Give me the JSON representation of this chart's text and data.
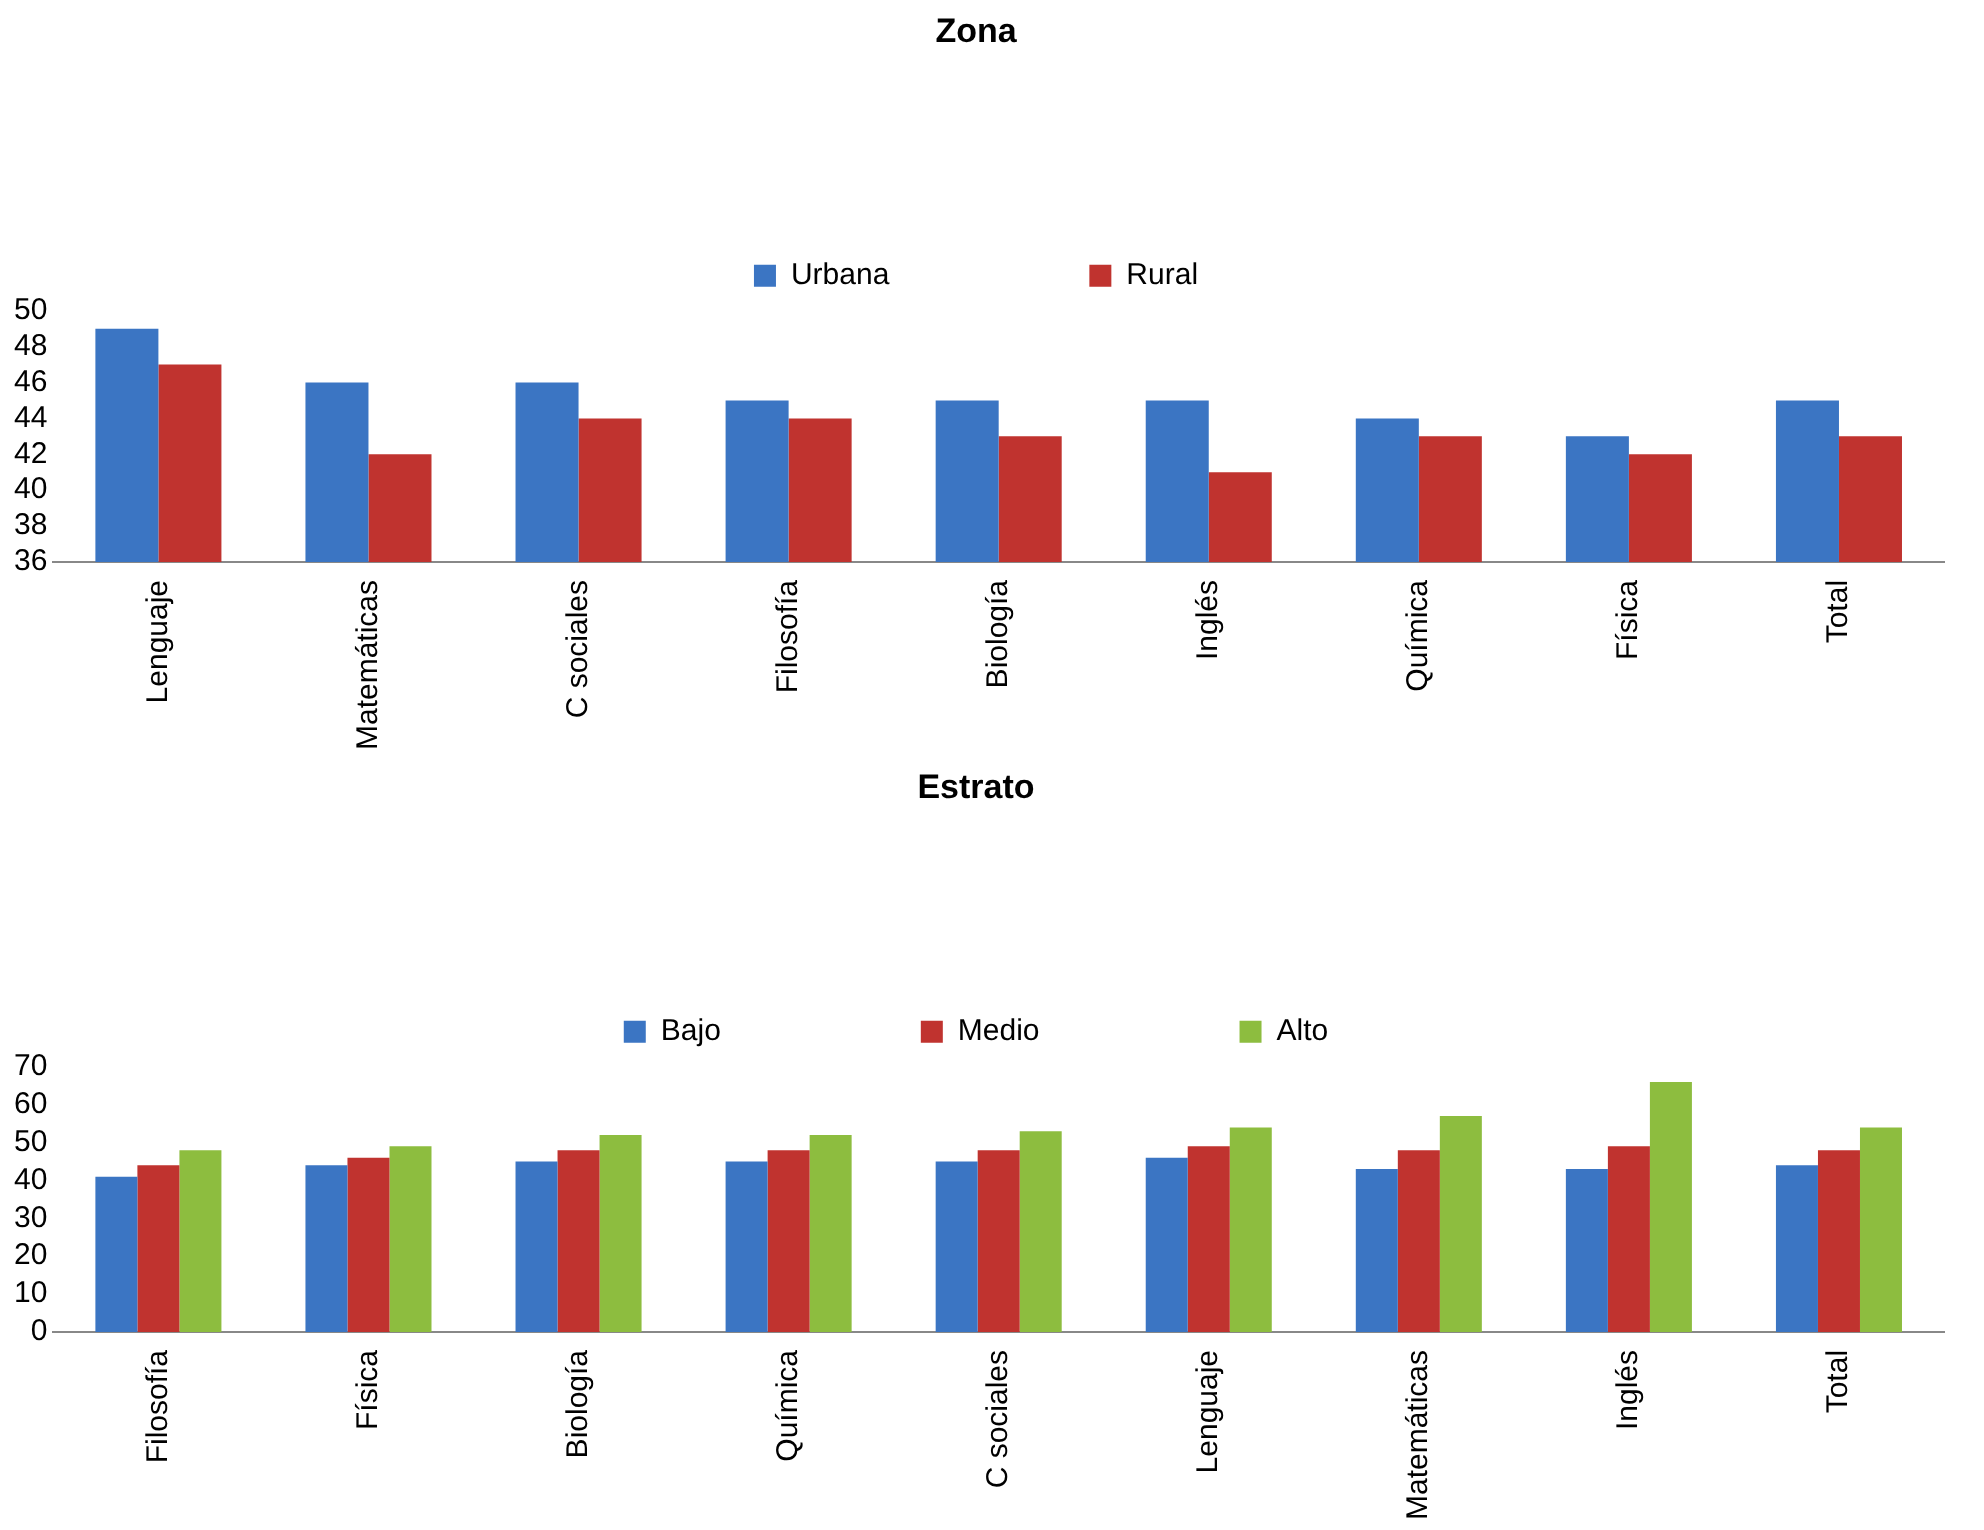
{
  "chart_data": [
    {
      "type": "bar",
      "title": "Zona",
      "categories": [
        "Lenguaje",
        "Matemáticas",
        "C sociales",
        "Filosofía",
        "Biología",
        "Inglés",
        "Química",
        "Física",
        "Total"
      ],
      "series": [
        {
          "name": "Urbana",
          "color": "#3b75c3",
          "values": [
            49,
            46,
            46,
            45,
            45,
            45,
            44,
            43,
            45
          ]
        },
        {
          "name": "Rural",
          "color": "#c0332f",
          "values": [
            47,
            42,
            44,
            44,
            43,
            41,
            43,
            42,
            43
          ]
        }
      ],
      "ylim": [
        36,
        50
      ],
      "yticks": [
        36,
        38,
        40,
        42,
        44,
        46,
        48,
        50
      ],
      "grid": false,
      "legend": "top"
    },
    {
      "type": "bar",
      "title": "Estrato",
      "categories": [
        "Filosofía",
        "Física",
        "Biología",
        "Química",
        "C sociales",
        "Lenguaje",
        "Matemáticas",
        "Inglés",
        "Total"
      ],
      "series": [
        {
          "name": "Bajo",
          "color": "#3b75c3",
          "values": [
            41,
            44,
            45,
            45,
            45,
            46,
            43,
            43,
            44
          ]
        },
        {
          "name": "Medio",
          "color": "#c0332f",
          "values": [
            44,
            46,
            48,
            48,
            48,
            49,
            48,
            49,
            48
          ]
        },
        {
          "name": "Alto",
          "color": "#8dbd3f",
          "values": [
            48,
            49,
            52,
            52,
            53,
            54,
            57,
            66,
            54
          ]
        }
      ],
      "ylim": [
        0,
        70
      ],
      "yticks": [
        0,
        10,
        20,
        30,
        40,
        50,
        60,
        70
      ],
      "grid": false,
      "legend": "top"
    }
  ]
}
